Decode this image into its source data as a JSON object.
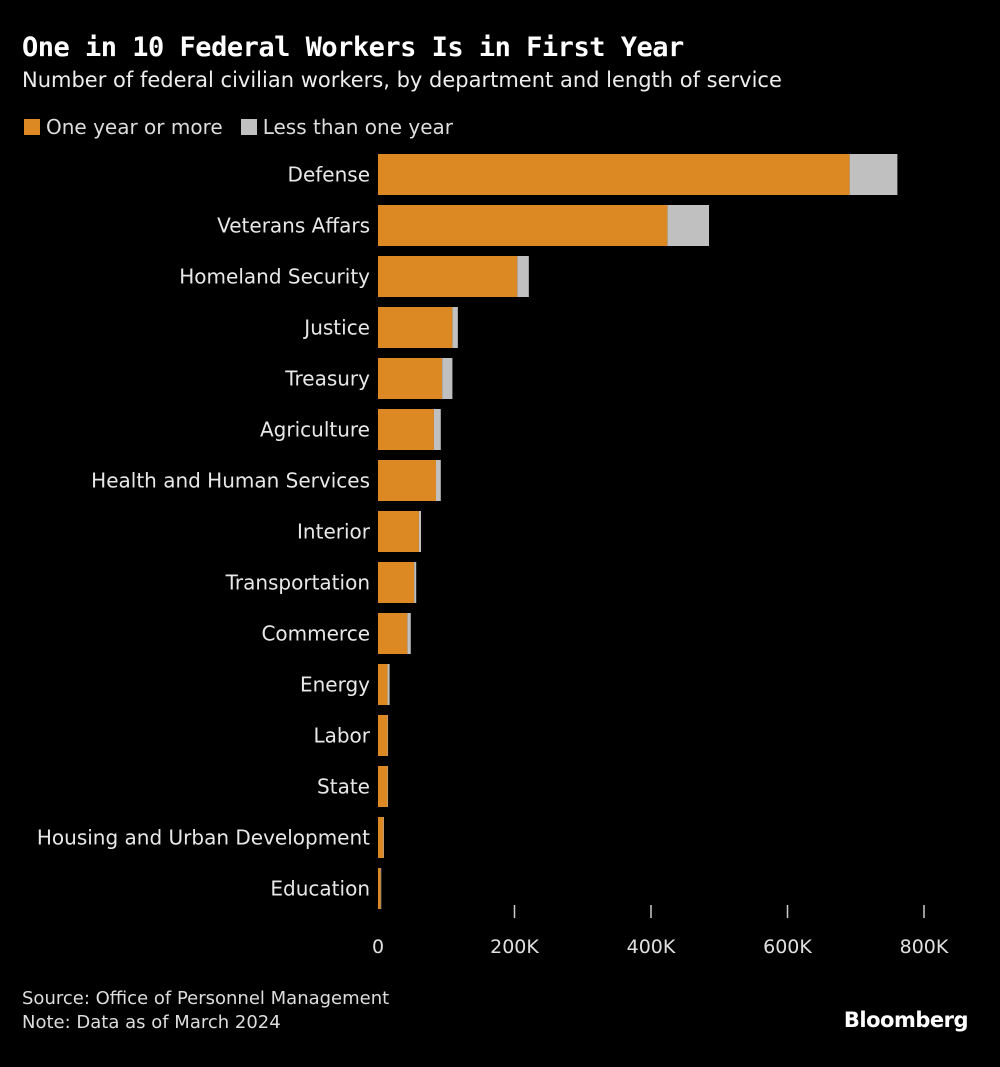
{
  "title": "One in 10 Federal Workers Is in First Year",
  "subtitle": "Number of federal civilian workers, by department and length of service",
  "source": "Source: Office of Personnel Management",
  "note": "Note: Data as of March 2024",
  "brand": "Bloomberg",
  "chart_data": {
    "type": "bar",
    "orientation": "horizontal",
    "stacked": true,
    "title": "One in 10 Federal Workers Is in First Year",
    "xlabel": "",
    "ylabel": "",
    "xlim": [
      0,
      800000
    ],
    "ticks": [
      {
        "v": 0,
        "label": "0"
      },
      {
        "v": 200000,
        "label": "200K"
      },
      {
        "v": 400000,
        "label": "400K"
      },
      {
        "v": 600000,
        "label": "600K"
      },
      {
        "v": 800000,
        "label": "800K"
      }
    ],
    "legend_position": "top-left",
    "categories": [
      "Defense",
      "Veterans Affars",
      "Homeland Security",
      "Justice",
      "Treasury",
      "Agriculture",
      "Health and Human Services",
      "Interior",
      "Transportation",
      "Commerce",
      "Energy",
      "Labor",
      "State",
      "Housing and Urban Development",
      "Education"
    ],
    "series": [
      {
        "name": "One year or more",
        "color": "#dc8923",
        "values": [
          691000,
          424000,
          204000,
          109000,
          94000,
          82000,
          85000,
          60000,
          53000,
          43000,
          14000,
          14000,
          14000,
          8000,
          4000
        ]
      },
      {
        "name": "Less than one year",
        "color": "#c0c0c0",
        "values": [
          70000,
          61000,
          17000,
          8000,
          15000,
          10000,
          7000,
          3000,
          3000,
          5000,
          3000,
          500,
          500,
          300,
          200
        ]
      }
    ]
  }
}
